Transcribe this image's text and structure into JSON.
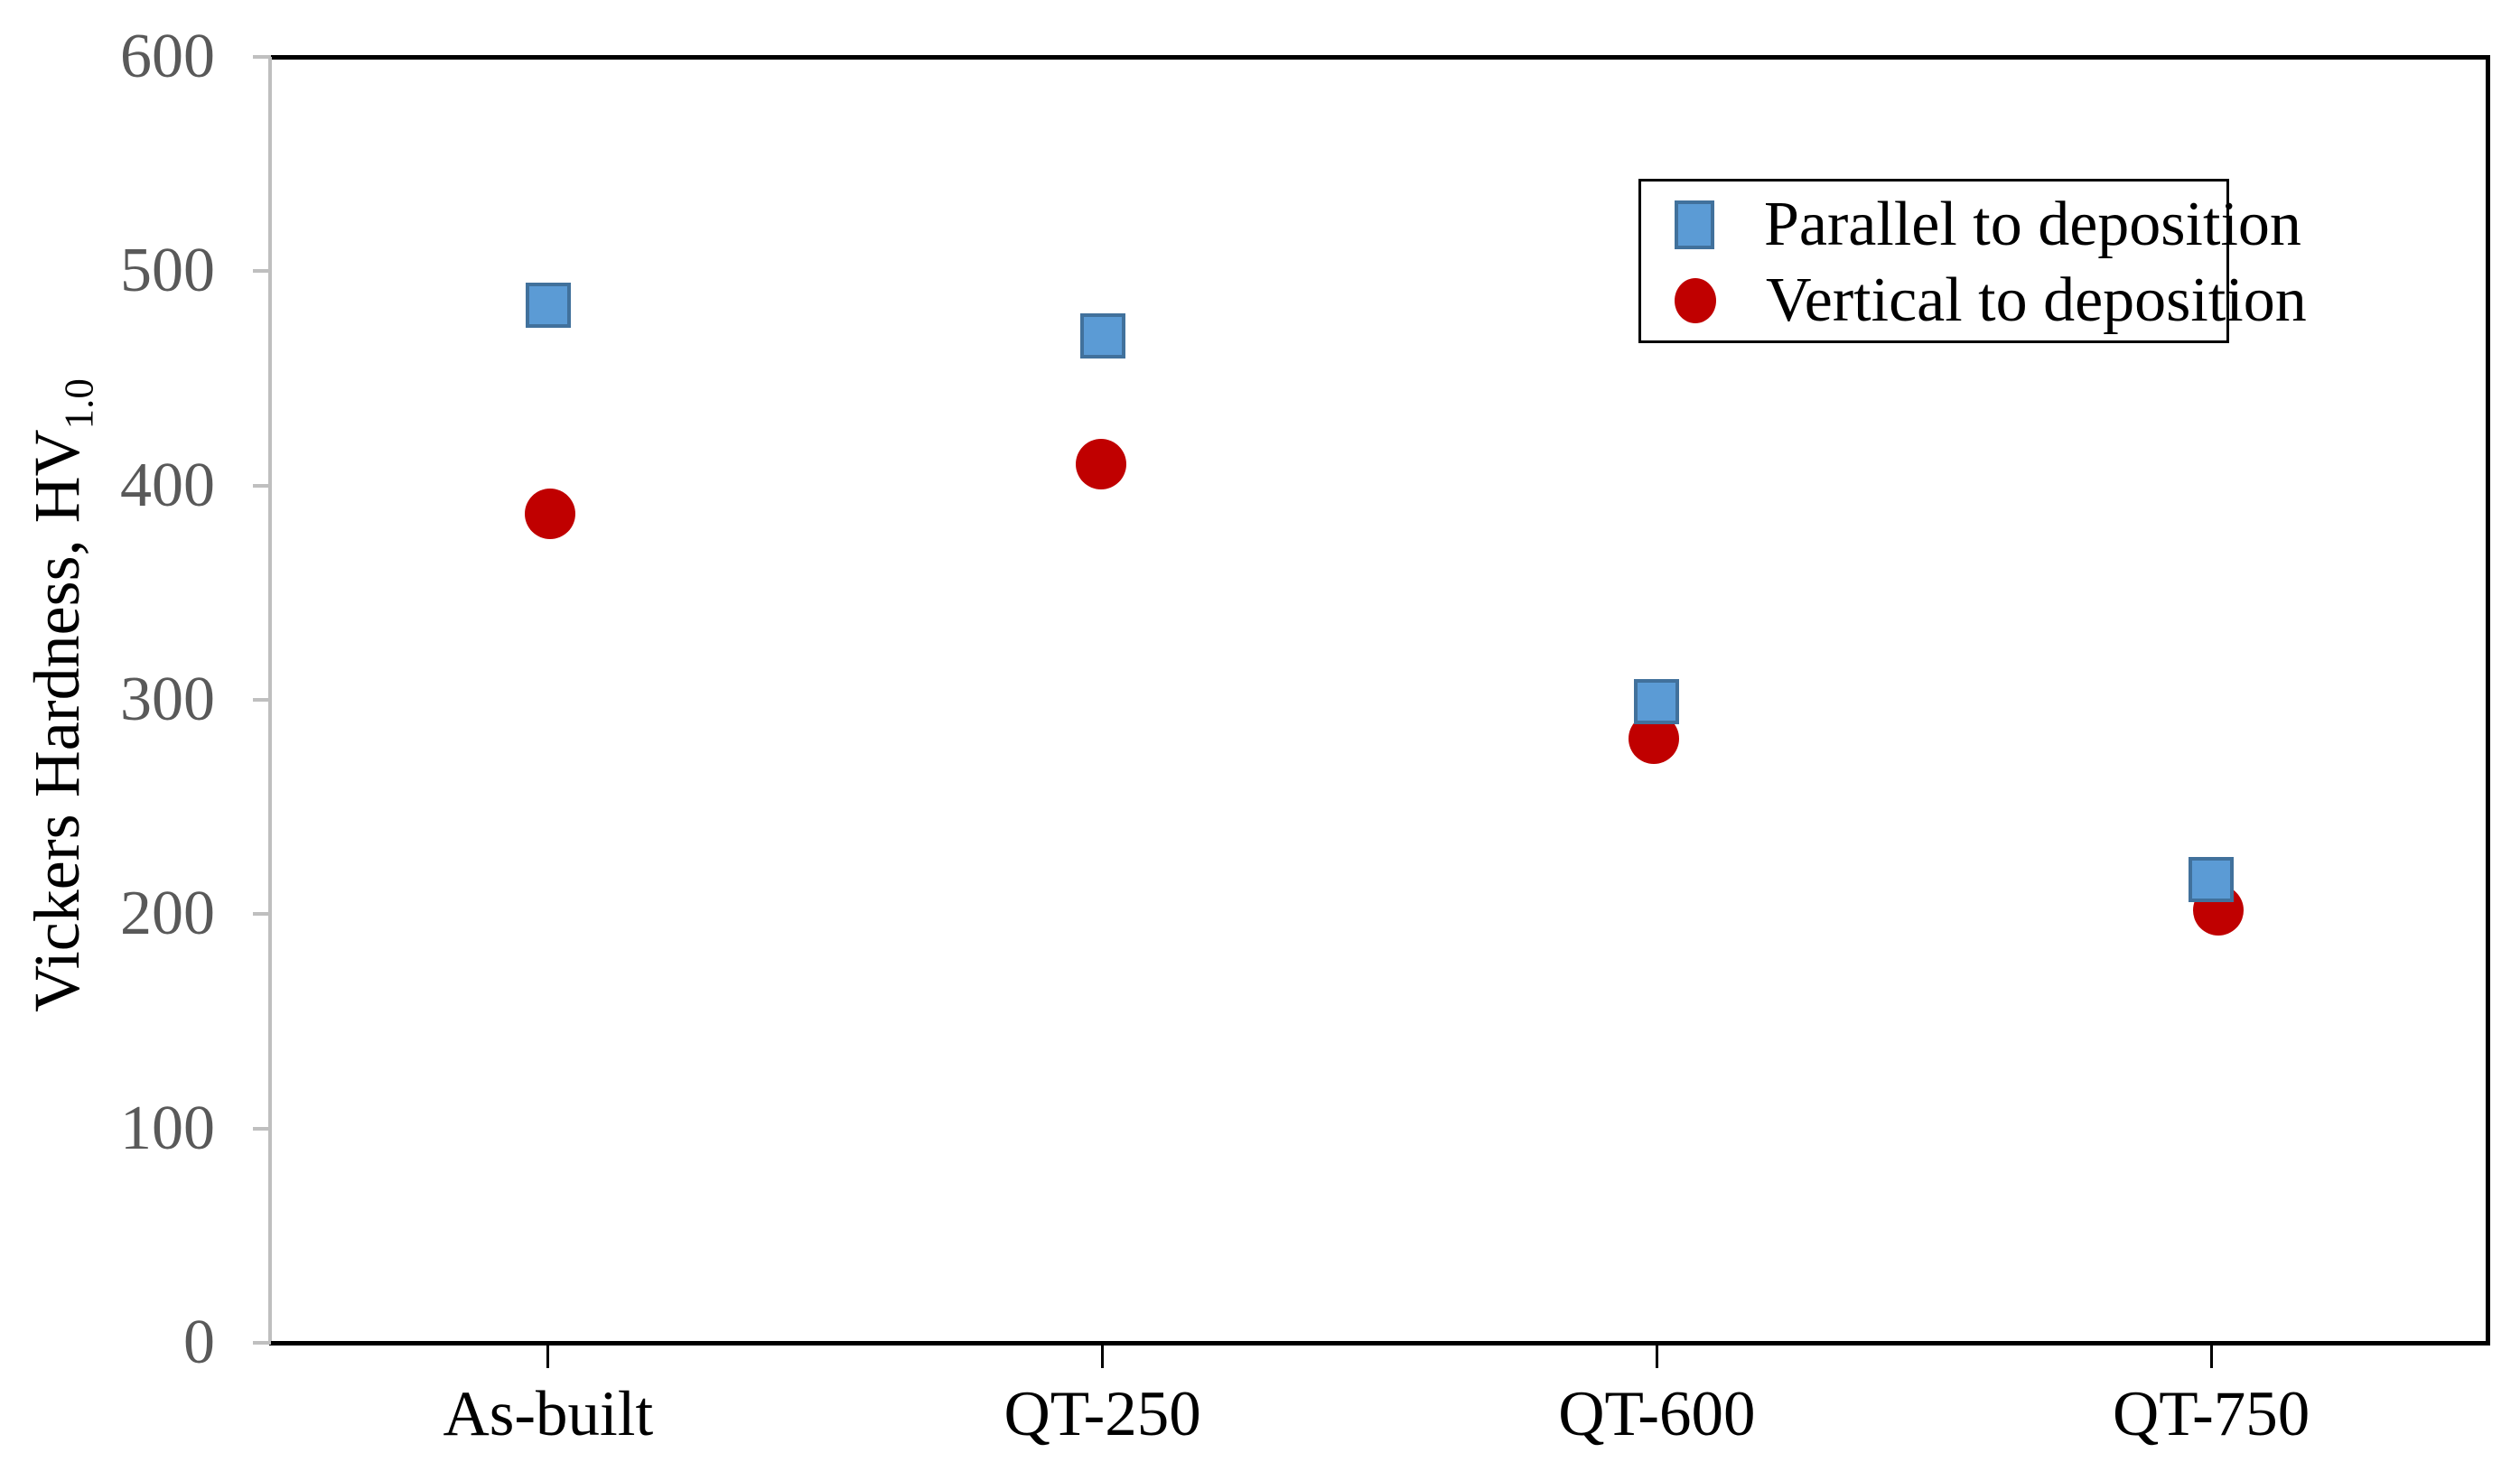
{
  "chart_data": {
    "type": "scatter",
    "categories": [
      "As-built",
      "QT-250",
      "QT-600",
      "QT-750"
    ],
    "series": [
      {
        "name": "Parallel to deposition",
        "marker": "square",
        "color": "#5B9BD5",
        "border_color": "#41719C",
        "values": [
          484,
          470,
          299,
          216
        ]
      },
      {
        "name": "Vertical to deposition",
        "marker": "circle",
        "color": "#C00000",
        "values": [
          387,
          410,
          282,
          202
        ]
      }
    ],
    "title": "",
    "xlabel": "",
    "ylabel": "Vickers Hardness, HV",
    "ylabel_subscript": "1.0",
    "ylim": [
      0,
      600
    ],
    "yticks": [
      0,
      100,
      200,
      300,
      400,
      500,
      600
    ],
    "grid": false,
    "legend_position": "upper right"
  },
  "colors": {
    "series_blue_fill": "#5B9BD5",
    "series_blue_border": "#41719C",
    "series_red": "#C00000",
    "axis_line_gray": "#BFBFBF",
    "y_tick_label_gray": "#595959",
    "text_black": "#000000",
    "background": "#FFFFFF",
    "frame_border": "#000000"
  }
}
